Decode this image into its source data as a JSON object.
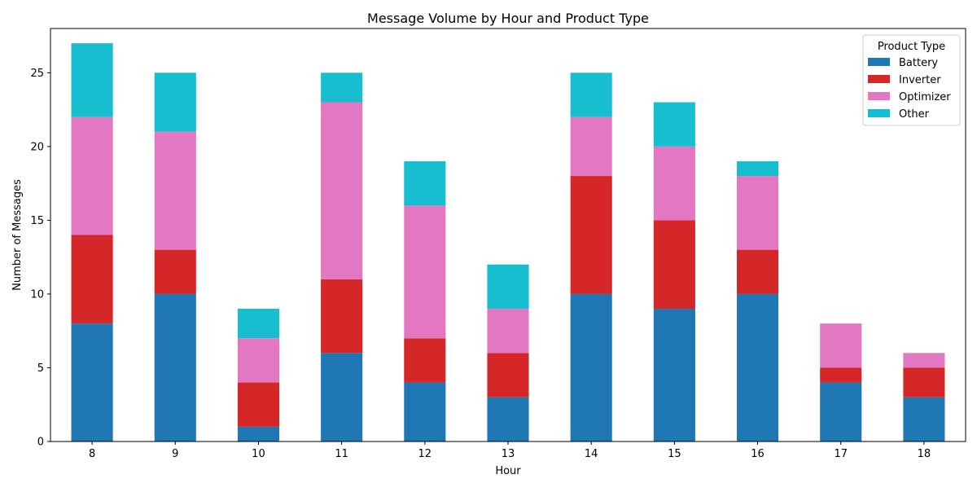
{
  "chart_data": {
    "type": "bar",
    "stacked": true,
    "title": "Message Volume by Hour and Product Type",
    "xlabel": "Hour",
    "ylabel": "Number of Messages",
    "categories": [
      "8",
      "9",
      "10",
      "11",
      "12",
      "13",
      "14",
      "15",
      "16",
      "17",
      "18"
    ],
    "ylim": [
      0,
      28
    ],
    "yticks": [
      0,
      5,
      10,
      15,
      20,
      25
    ],
    "grid": false,
    "legend": {
      "title": "Product Type",
      "placement": "top-right"
    },
    "series": [
      {
        "name": "Battery",
        "color": "#1f77b4",
        "values": [
          8,
          10,
          1,
          6,
          4,
          3,
          10,
          9,
          10,
          4,
          3
        ]
      },
      {
        "name": "Inverter",
        "color": "#d62728",
        "values": [
          6,
          3,
          3,
          5,
          3,
          3,
          8,
          6,
          3,
          1,
          2
        ]
      },
      {
        "name": "Optimizer",
        "color": "#e377c2",
        "values": [
          8,
          8,
          3,
          12,
          9,
          3,
          4,
          5,
          5,
          3,
          1
        ]
      },
      {
        "name": "Other",
        "color": "#17becf",
        "values": [
          5,
          4,
          2,
          2,
          3,
          3,
          3,
          3,
          1,
          0,
          0
        ]
      }
    ]
  }
}
